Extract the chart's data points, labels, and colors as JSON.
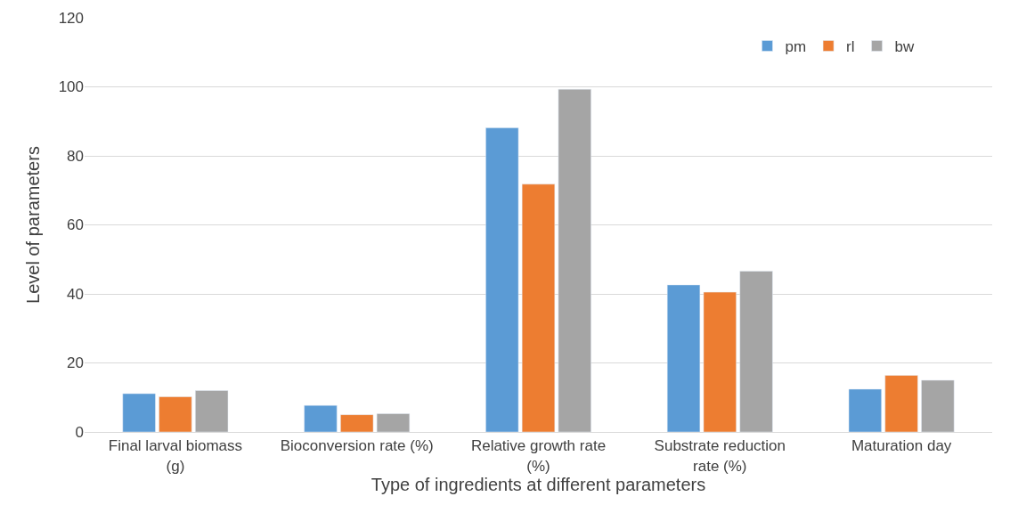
{
  "chart_data": {
    "type": "bar",
    "xlabel": "Type of ingredients at different parameters",
    "ylabel": "Level of parameters",
    "categories": [
      "Final larval biomass (g)",
      "Bioconversion rate (%)",
      "Relative growth rate (%)",
      "Substrate reduction rate (%)",
      "Maturation day"
    ],
    "series": [
      {
        "name": "pm",
        "color": "#5b9bd5",
        "values": [
          11.1,
          7.7,
          88.1,
          42.6,
          12.4
        ]
      },
      {
        "name": "rl",
        "color": "#ed7d31",
        "values": [
          10.2,
          5.0,
          71.8,
          40.5,
          16.4
        ]
      },
      {
        "name": "bw",
        "color": "#a5a5a5",
        "values": [
          12.0,
          5.3,
          99.3,
          46.6,
          15.0
        ]
      }
    ],
    "ylim": [
      0,
      120
    ],
    "yticks": [
      0,
      20,
      40,
      60,
      80,
      100,
      120
    ],
    "grid": "y",
    "legend": "top right"
  }
}
